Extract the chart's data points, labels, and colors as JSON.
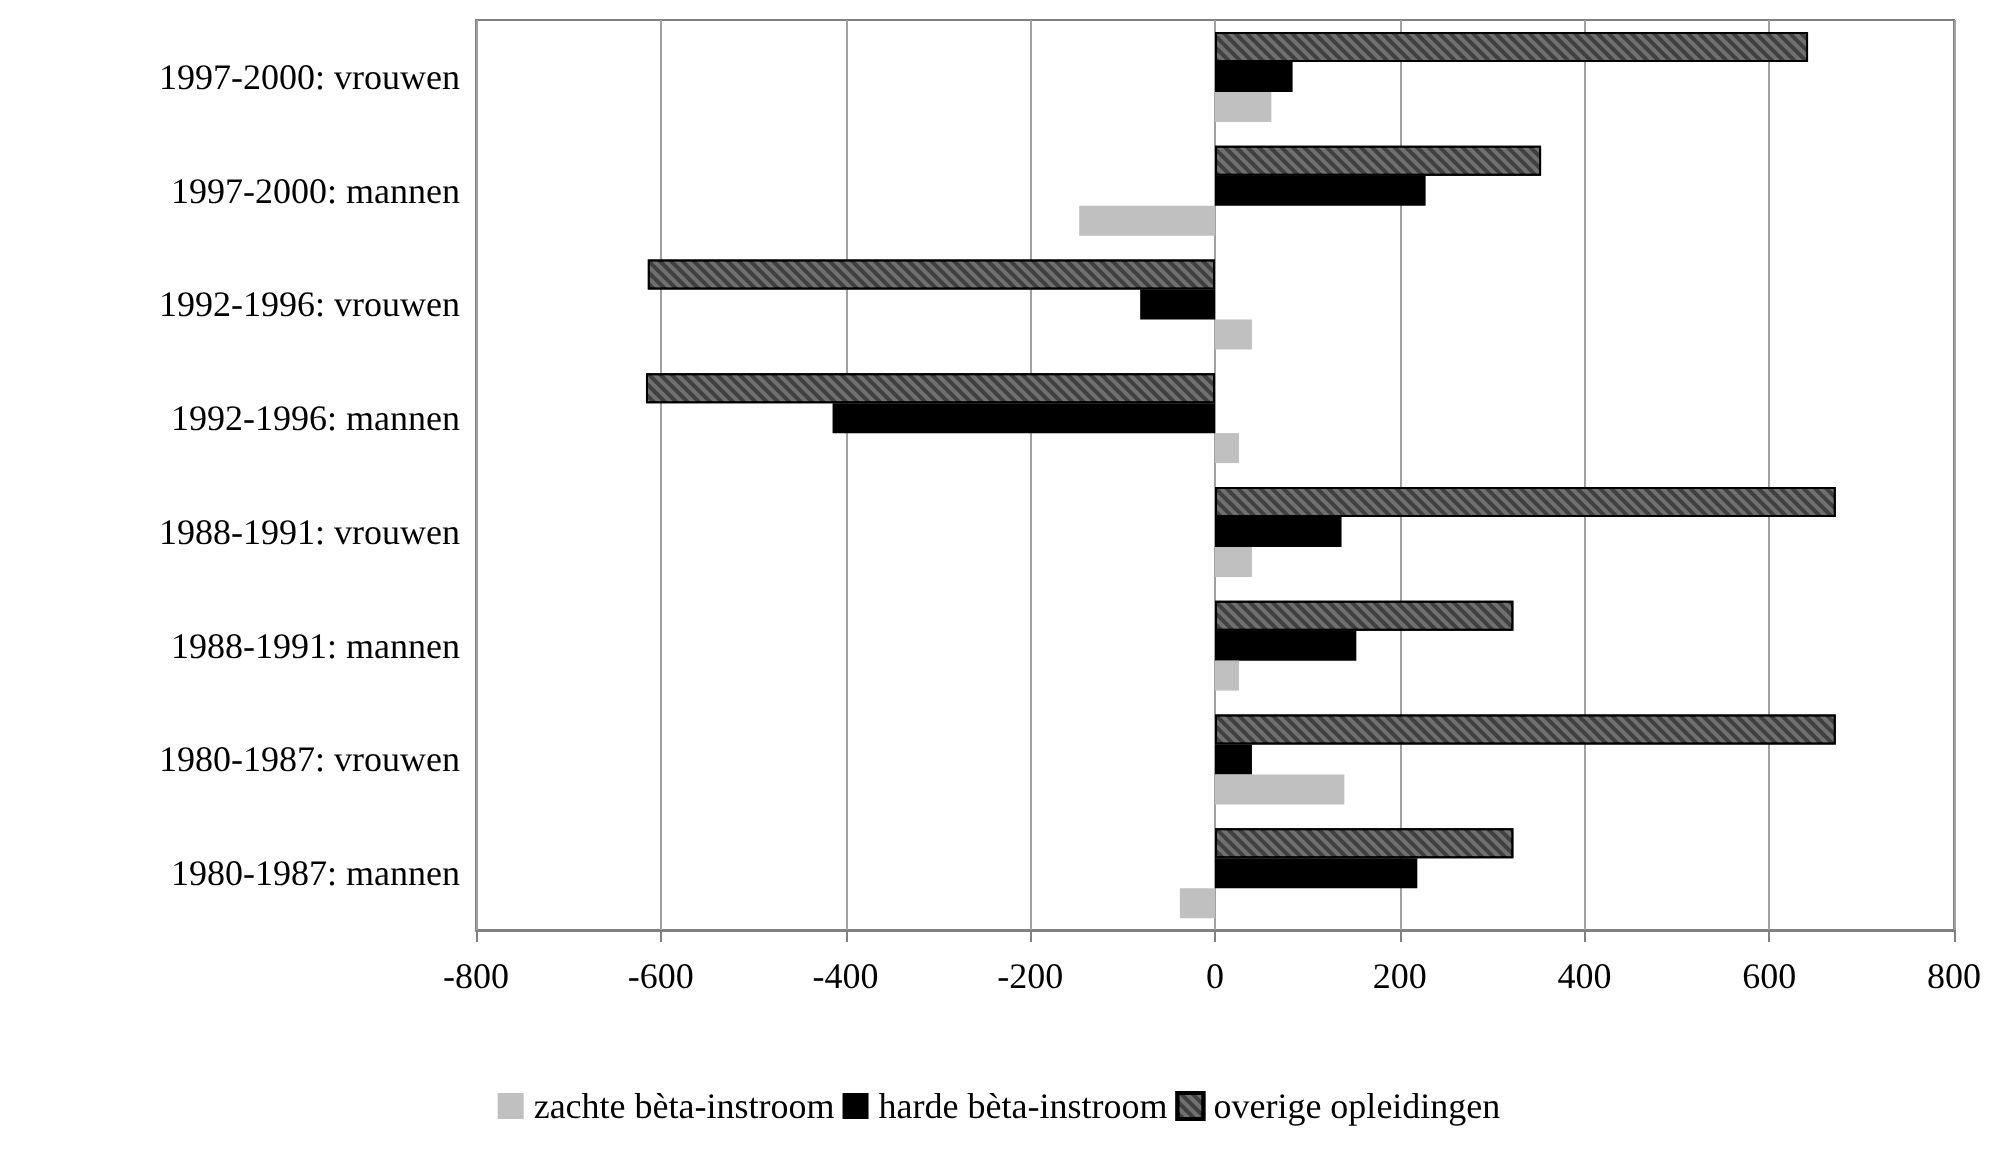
{
  "chart_data": {
    "type": "bar",
    "orientation": "horizontal",
    "categories": [
      "1997-2000: vrouwen",
      "1997-2000: mannen",
      "1992-1996: vrouwen",
      "1992-1996: mannen",
      "1988-1991: vrouwen",
      "1988-1991: mannen",
      "1980-1987: vrouwen",
      "1980-1987: mannen"
    ],
    "series": [
      {
        "name": "zachte bèta-instroom",
        "color": "#c0c0c0",
        "values": [
          61,
          -147,
          40,
          26,
          40,
          26,
          140,
          -38
        ]
      },
      {
        "name": "harde bèta-instroom",
        "color": "#000000",
        "values": [
          84,
          228,
          -81,
          -414,
          137,
          153,
          40,
          219
        ]
      },
      {
        "name": "overige opleidingen",
        "color": "#404040",
        "values": [
          642,
          353,
          -614,
          -616,
          672,
          323,
          672,
          323
        ]
      }
    ],
    "xlim": [
      -800,
      800
    ],
    "xticks": [
      -800,
      -600,
      -400,
      -200,
      0,
      200,
      400,
      600,
      800
    ],
    "grid": "x",
    "legend": "bottom"
  }
}
